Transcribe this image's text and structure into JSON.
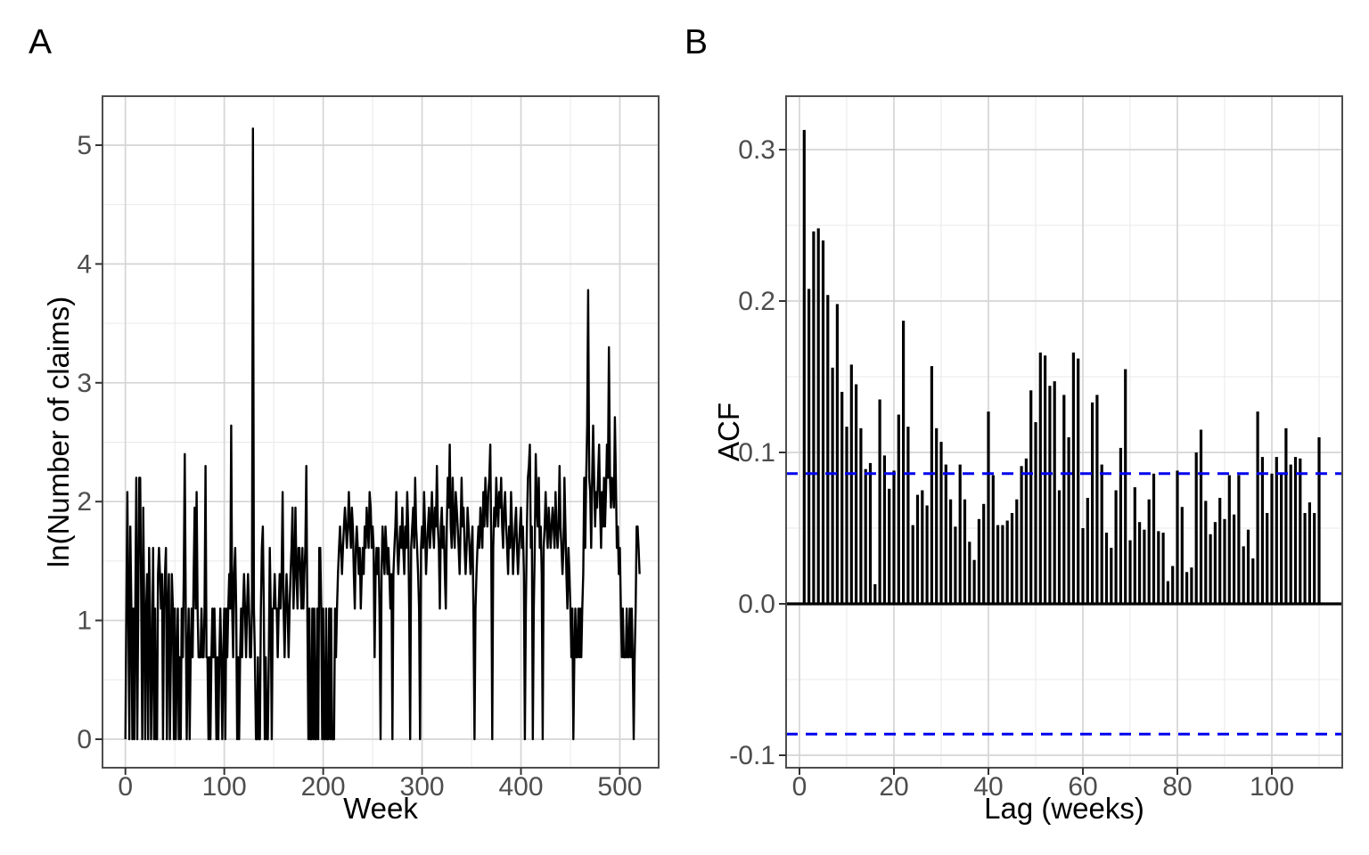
{
  "page": {
    "background": "#FFFFFF"
  },
  "panels": {
    "a": {
      "tag": "A",
      "xlabel": "Week",
      "ylabel": "ln(Number of claims)"
    },
    "b": {
      "tag": "B",
      "xlabel": "Lag (weeks)",
      "ylabel": "ACF"
    }
  },
  "colors": {
    "series": "#000000",
    "conf_band": "#0000EE",
    "grid_major": "#D5D5D5",
    "grid_minor": "#E9E9E9",
    "border": "#4D4D4D",
    "tick_text": "#4D4D4D",
    "tick_mark": "#333333"
  },
  "chart_data": [
    {
      "type": "line",
      "title": "",
      "xlabel": "Week",
      "ylabel": "ln(Number of claims)",
      "x_start": 0,
      "x_step": 1,
      "xlim": [
        -26,
        546
      ],
      "ylim": [
        -0.26,
        5.4
      ],
      "grid": true,
      "xtick_values": [
        0,
        100,
        200,
        300,
        400,
        500
      ],
      "xtick_labels": [
        "0",
        "100",
        "200",
        "300",
        "400",
        "500"
      ],
      "xtick_minor": [
        50,
        150,
        250,
        350,
        450
      ],
      "ytick_values": [
        0,
        1,
        2,
        3,
        4,
        5
      ],
      "ytick_labels": [
        "0",
        "1",
        "2",
        "3",
        "4",
        "5"
      ],
      "ytick_minor": [
        0.5,
        1.5,
        2.5,
        3.5,
        4.5
      ],
      "values": [
        0,
        1.1,
        2.08,
        1.1,
        0,
        1.79,
        1.1,
        0,
        1.1,
        0,
        1.1,
        2.2,
        0,
        1.1,
        2.2,
        2.2,
        1.1,
        0,
        1.95,
        1.1,
        0,
        1.1,
        1.39,
        0,
        1.61,
        1.1,
        0,
        0.69,
        1.61,
        0,
        1.1,
        0,
        0,
        1.39,
        1.61,
        1.39,
        1.1,
        1.39,
        0,
        1.1,
        1.39,
        1.61,
        0,
        1.1,
        1.39,
        0,
        0.69,
        1.39,
        1.1,
        0,
        1.1,
        0,
        0.69,
        1.1,
        0,
        0.69,
        0,
        1.1,
        0.69,
        1.39,
        2.4,
        1.1,
        0,
        0.69,
        1.1,
        0,
        0.69,
        1.1,
        0.69,
        1.39,
        1.95,
        1.1,
        2.08,
        1.1,
        0.69,
        0.69,
        0.69,
        1.1,
        0.69,
        0.69,
        1.1,
        2.3,
        0.69,
        0.69,
        0,
        0.69,
        0,
        0.69,
        1.1,
        0.69,
        1.1,
        0.69,
        0,
        0.69,
        0,
        0.69,
        1.1,
        0.69,
        0,
        0.69,
        1.1,
        0,
        1.1,
        0.69,
        1.1,
        1.39,
        1.1,
        2.64,
        1.1,
        0.69,
        1.39,
        1.61,
        1.1,
        0,
        0.69,
        0,
        0.69,
        1.1,
        0.69,
        1.1,
        1.39,
        1.1,
        0.69,
        1.1,
        1.39,
        1.1,
        0.69,
        0.69,
        1.1,
        5.14,
        1.1,
        0.69,
        0,
        0,
        0.69,
        0,
        0,
        1.1,
        1.61,
        1.79,
        1.1,
        0,
        0.69,
        0,
        0,
        0.69,
        1.61,
        1.1,
        0,
        1.1,
        1.1,
        1.39,
        1.1,
        1.1,
        0.69,
        1.1,
        1.39,
        1.1,
        1.39,
        2.08,
        1.1,
        0.69,
        1.1,
        1.39,
        1.1,
        0.69,
        1.1,
        1.39,
        1.61,
        1.95,
        1.1,
        1.39,
        1.95,
        1.39,
        1.1,
        1.61,
        1.61,
        1.39,
        1.1,
        1.61,
        1.1,
        1.39,
        1.61,
        2.3,
        1.1,
        0,
        1.1,
        0,
        0,
        1.1,
        0,
        1.1,
        0,
        0,
        1.1,
        0,
        1.61,
        1.61,
        1.1,
        0,
        1.1,
        0,
        0,
        1.1,
        0,
        0,
        1.1,
        0,
        1.1,
        0,
        0,
        0,
        1.1,
        0.69,
        1.1,
        1.39,
        1.61,
        1.79,
        1.61,
        1.39,
        1.61,
        1.79,
        1.95,
        1.79,
        1.61,
        1.79,
        2.08,
        1.79,
        1.61,
        1.95,
        1.79,
        1.39,
        1.1,
        1.61,
        1.79,
        1.61,
        1.39,
        1.61,
        1.1,
        1.39,
        1.61,
        1.39,
        1.79,
        1.61,
        1.95,
        1.79,
        1.61,
        2.08,
        1.95,
        1.61,
        1.79,
        1.61,
        0.69,
        1.39,
        1.61,
        1.39,
        1.61,
        1.1,
        0,
        1.39,
        1.79,
        1.61,
        1.39,
        1.79,
        1.61,
        1.39,
        1.61,
        1.39,
        1.1,
        1.39,
        0,
        1.39,
        1.61,
        1.79,
        2.08,
        1.61,
        1.39,
        1.61,
        1.79,
        1.61,
        1.95,
        1.61,
        1.39,
        1.79,
        1.61,
        2.08,
        1.79,
        1.1,
        0,
        1.61,
        1.79,
        1.95,
        1.61,
        2.2,
        1.79,
        1.61,
        1.39,
        1.1,
        0,
        1.61,
        1.79,
        1.61,
        2.08,
        1.79,
        1.39,
        1.61,
        1.79,
        1.95,
        1.61,
        1.79,
        2.08,
        1.79,
        1.61,
        1.95,
        1.79,
        2.3,
        1.79,
        1.61,
        1.1,
        1.79,
        1.95,
        1.61,
        1.79,
        1.39,
        1.1,
        1.79,
        2.2,
        1.95,
        2.48,
        1.79,
        1.61,
        2.2,
        1.79,
        1.61,
        2.08,
        1.95,
        1.79,
        1.61,
        1.39,
        1.79,
        2.2,
        1.79,
        1.95,
        1.61,
        1.39,
        1.61,
        1.95,
        1.79,
        1.61,
        1.39,
        1.61,
        1.79,
        1.1,
        0,
        1.1,
        1.39,
        1.61,
        1.79,
        1.61,
        1.95,
        1.79,
        1.61,
        2.08,
        1.79,
        2.2,
        1.95,
        1.79,
        2.08,
        2.2,
        2.48,
        1.61,
        0,
        1.61,
        1.95,
        1.79,
        2.2,
        1.95,
        1.79,
        2.08,
        1.95,
        2.2,
        1.79,
        1.61,
        1.95,
        2.08,
        1.79,
        1.61,
        1.39,
        1.79,
        1.61,
        2.08,
        1.79,
        1.39,
        1.61,
        1.79,
        1.95,
        1.61,
        1.39,
        1.61,
        1.79,
        1.95,
        1.61,
        1.79,
        1.39,
        0,
        1.1,
        1.79,
        2.2,
        2.3,
        2.48,
        1.61,
        1.79,
        0,
        1.1,
        1.61,
        2.4,
        1.95,
        1.79,
        2.2,
        1.61,
        1.79,
        1.39,
        0,
        1.61,
        1.79,
        2.08,
        1.79,
        1.61,
        1.95,
        1.79,
        1.61,
        1.79,
        1.95,
        1.79,
        1.61,
        2.08,
        1.79,
        1.61,
        1.79,
        2.3,
        1.79,
        1.61,
        1.39,
        1.61,
        2.2,
        1.79,
        1.39,
        1.1,
        1.61,
        1.39,
        1.1,
        0.69,
        1.1,
        0,
        0.69,
        1.1,
        0.69,
        0.69,
        1.1,
        0.69,
        1.1,
        0.69,
        1.1,
        1.39,
        2.2,
        1.61,
        2.2,
        2.64,
        3.78,
        2.2,
        2.08,
        1.61,
        2.2,
        2.64,
        2.2,
        1.79,
        2.08,
        1.95,
        2.2,
        2.48,
        1.95,
        1.61,
        2.08,
        1.79,
        2.2,
        1.79,
        2.08,
        2.48,
        2.2,
        3.3,
        2.2,
        1.95,
        2.2,
        2.08,
        1.95,
        2.71,
        2.2,
        1.61,
        1.79,
        1.39,
        1.61,
        1.1,
        0.69,
        1.1,
        0.69,
        0.69,
        0.69,
        1.1,
        0.69,
        0.69,
        1.1,
        0.69,
        1.1,
        0.69,
        0,
        0.69,
        1.1,
        1.79,
        1.79,
        1.61,
        1.39
      ]
    },
    {
      "type": "bar",
      "title": "",
      "xlabel": "Lag (weeks)",
      "ylabel": "ACF",
      "lag_start": 1,
      "xlim": [
        -5.5,
        115.5
      ],
      "ylim": [
        -0.109,
        0.335
      ],
      "grid": true,
      "zero_line": 0,
      "conf_bounds": [
        0.086,
        -0.086
      ],
      "xtick_values": [
        0,
        20,
        40,
        60,
        80,
        100
      ],
      "xtick_labels": [
        "0",
        "20",
        "40",
        "60",
        "80",
        "100"
      ],
      "xtick_minor": [
        10,
        30,
        50,
        70,
        90,
        110
      ],
      "ytick_values": [
        -0.1,
        0,
        0.1,
        0.2,
        0.3
      ],
      "ytick_labels": [
        "-0.1",
        "0.0",
        "0.1",
        "0.2",
        "0.3"
      ],
      "ytick_minor": [
        -0.05,
        0.05,
        0.15,
        0.25
      ],
      "values": [
        0.313,
        0.208,
        0.246,
        0.248,
        0.24,
        0.204,
        0.156,
        0.198,
        0.14,
        0.117,
        0.158,
        0.145,
        0.116,
        0.089,
        0.093,
        0.013,
        0.135,
        0.098,
        0.076,
        0.088,
        0.125,
        0.187,
        0.117,
        0.052,
        0.072,
        0.075,
        0.065,
        0.157,
        0.116,
        0.107,
        0.092,
        0.069,
        0.051,
        0.092,
        0.069,
        0.041,
        0.029,
        0.056,
        0.066,
        0.127,
        0.085,
        0.052,
        0.052,
        0.055,
        0.06,
        0.069,
        0.091,
        0.096,
        0.141,
        0.12,
        0.166,
        0.164,
        0.144,
        0.147,
        0.075,
        0.138,
        0.11,
        0.166,
        0.162,
        0.05,
        0.07,
        0.133,
        0.138,
        0.092,
        0.047,
        0.037,
        0.075,
        0.103,
        0.155,
        0.042,
        0.077,
        0.054,
        0.049,
        0.069,
        0.086,
        0.048,
        0.047,
        0.015,
        0.025,
        0.088,
        0.064,
        0.021,
        0.024,
        0.1,
        0.115,
        0.068,
        0.046,
        0.054,
        0.07,
        0.056,
        0.085,
        0.059,
        0.085,
        0.038,
        0.049,
        0.03,
        0.127,
        0.097,
        0.06,
        0.086,
        0.097,
        0.086,
        0.116,
        0.092,
        0.097,
        0.096,
        0.06,
        0.067,
        0.06,
        0.11
      ]
    }
  ]
}
